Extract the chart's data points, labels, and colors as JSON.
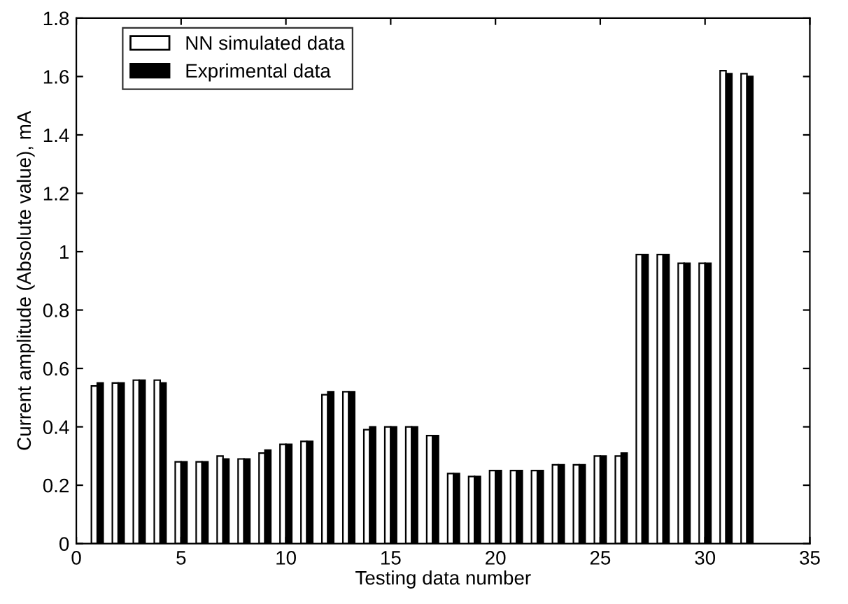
{
  "chart_data": {
    "type": "bar",
    "xlabel": "Testing data number",
    "ylabel": "Current amplitude (Absolute value), mA",
    "x": [
      1,
      2,
      3,
      4,
      5,
      6,
      7,
      8,
      9,
      10,
      11,
      12,
      13,
      14,
      15,
      16,
      17,
      18,
      19,
      20,
      21,
      22,
      23,
      24,
      25,
      26,
      27,
      28,
      29,
      30,
      31,
      32
    ],
    "series": [
      {
        "name": "NN simulated data",
        "color": "#ffffff",
        "values": [
          0.54,
          0.55,
          0.56,
          0.56,
          0.28,
          0.28,
          0.3,
          0.29,
          0.31,
          0.34,
          0.35,
          0.51,
          0.52,
          0.39,
          0.4,
          0.4,
          0.37,
          0.24,
          0.23,
          0.25,
          0.25,
          0.25,
          0.27,
          0.27,
          0.3,
          0.3,
          0.99,
          0.99,
          0.96,
          0.96,
          1.62,
          1.61
        ]
      },
      {
        "name": "Exprimental data",
        "color": "#000000",
        "values": [
          0.55,
          0.55,
          0.56,
          0.55,
          0.28,
          0.28,
          0.29,
          0.29,
          0.32,
          0.34,
          0.35,
          0.52,
          0.52,
          0.4,
          0.4,
          0.4,
          0.37,
          0.24,
          0.23,
          0.25,
          0.25,
          0.25,
          0.27,
          0.27,
          0.3,
          0.31,
          0.99,
          0.99,
          0.96,
          0.96,
          1.61,
          1.6
        ]
      }
    ],
    "xlim": [
      0,
      35
    ],
    "xticks": [
      0,
      5,
      10,
      15,
      20,
      25,
      30,
      35
    ],
    "ylim": [
      0,
      1.8
    ],
    "yticks": [
      0,
      0.2,
      0.4,
      0.6,
      0.8,
      1,
      1.2,
      1.4,
      1.6,
      1.8
    ],
    "legend": "top left",
    "grid": false
  }
}
